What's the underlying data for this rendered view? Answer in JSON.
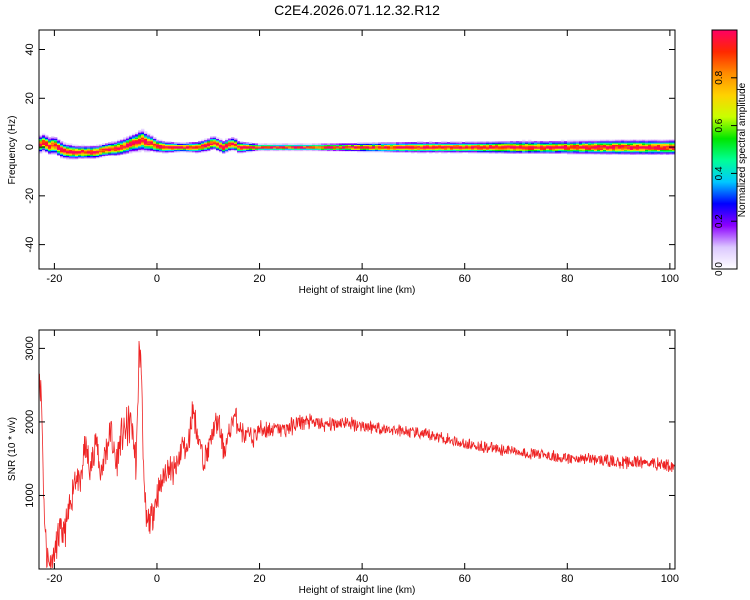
{
  "title": "C2E4.2026.071.12.32.R12",
  "chart_data": [
    {
      "type": "heatmap",
      "xlabel": "Height of straight line (km)",
      "ylabel": "Frequency (Hz)",
      "xlim": [
        -23,
        101
      ],
      "ylim": [
        -50,
        48
      ],
      "xticks": [
        -20,
        0,
        20,
        40,
        60,
        80,
        100
      ],
      "yticks": [
        -40,
        -20,
        0,
        20,
        40
      ],
      "colorbar": {
        "label": "Normalized spectral amplitude",
        "range": [
          0,
          1
        ],
        "ticks": [
          "0.0",
          "0.2",
          "0.4",
          "0.6",
          "0.8"
        ],
        "colors": [
          "#ffffff",
          "#dcc8ff",
          "#8c00ff",
          "#0000ff",
          "#00c8ff",
          "#00ff96",
          "#00e600",
          "#c8ff00",
          "#ffd200",
          "#ff8c00",
          "#ff2800",
          "#ff0064"
        ]
      },
      "ridge": {
        "description_free": true,
        "points": [
          [
            -23,
            1.0
          ],
          [
            -22,
            2.0
          ],
          [
            -21,
            0.5
          ],
          [
            -20,
            1.0
          ],
          [
            -19,
            -0.5
          ],
          [
            -18,
            -1.5
          ],
          [
            -16,
            -2.0
          ],
          [
            -14,
            -2.0
          ],
          [
            -12,
            -2.0
          ],
          [
            -10,
            -1.0
          ],
          [
            -8,
            -0.5
          ],
          [
            -6,
            0.5
          ],
          [
            -5,
            1.5
          ],
          [
            -4,
            2.0
          ],
          [
            -3,
            3.0
          ],
          [
            -2,
            2.0
          ],
          [
            -1,
            1.5
          ],
          [
            0,
            0.5
          ],
          [
            2,
            0.0
          ],
          [
            5,
            0.0
          ],
          [
            8,
            0.0
          ],
          [
            10,
            1.0
          ],
          [
            11,
            2.0
          ],
          [
            12,
            1.0
          ],
          [
            13,
            0.0
          ],
          [
            14,
            1.0
          ],
          [
            15,
            1.5
          ],
          [
            16,
            0.0
          ],
          [
            20,
            0.0
          ],
          [
            30,
            0.0
          ],
          [
            40,
            0.0
          ],
          [
            50,
            0.0
          ],
          [
            60,
            0.0
          ],
          [
            70,
            0.0
          ],
          [
            80,
            0.0
          ],
          [
            90,
            0.0
          ],
          [
            101,
            0.0
          ]
        ],
        "spread": [
          [
            -23,
            4
          ],
          [
            -20,
            4
          ],
          [
            -15,
            3
          ],
          [
            -10,
            3
          ],
          [
            -5,
            4
          ],
          [
            -3,
            5
          ],
          [
            0,
            3
          ],
          [
            5,
            2
          ],
          [
            10,
            3
          ],
          [
            15,
            3
          ],
          [
            20,
            1.5
          ],
          [
            30,
            1.5
          ],
          [
            40,
            2
          ],
          [
            50,
            2.5
          ],
          [
            60,
            2.5
          ],
          [
            70,
            3
          ],
          [
            80,
            3
          ],
          [
            90,
            3.5
          ],
          [
            101,
            3.5
          ]
        ]
      }
    },
    {
      "type": "line",
      "xlabel": "Height of straight line (km)",
      "ylabel": "SNR (10 * v/v)",
      "xlim": [
        -23,
        101
      ],
      "ylim": [
        0,
        3250
      ],
      "xticks": [
        -20,
        0,
        20,
        40,
        60,
        80,
        100
      ],
      "yticks": [
        1000,
        2000,
        3000
      ],
      "color": "#ee2222",
      "series": [
        {
          "values_envelope": [
            [
              -23,
              2700
            ],
            [
              -22.5,
              2300
            ],
            [
              -22,
              800
            ],
            [
              -21.5,
              200
            ],
            [
              -21,
              100
            ],
            [
              -20,
              200
            ],
            [
              -19,
              500
            ],
            [
              -18,
              500
            ],
            [
              -17,
              800
            ],
            [
              -16,
              1300
            ],
            [
              -15,
              1100
            ],
            [
              -14,
              1700
            ],
            [
              -13,
              1300
            ],
            [
              -12,
              1800
            ],
            [
              -11,
              1300
            ],
            [
              -10,
              1600
            ],
            [
              -9,
              1900
            ],
            [
              -8,
              1400
            ],
            [
              -7,
              1800
            ],
            [
              -6,
              1900
            ],
            [
              -5,
              2000
            ],
            [
              -4,
              1400
            ],
            [
              -3.5,
              3000
            ],
            [
              -3,
              2700
            ],
            [
              -2.5,
              1000
            ],
            [
              -2,
              600
            ],
            [
              -1,
              700
            ],
            [
              0,
              1000
            ],
            [
              1,
              1200
            ],
            [
              2,
              1400
            ],
            [
              3,
              1300
            ],
            [
              4,
              1400
            ],
            [
              5,
              1700
            ],
            [
              6,
              1600
            ],
            [
              7,
              2200
            ],
            [
              8,
              1800
            ],
            [
              9,
              1500
            ],
            [
              10,
              1600
            ],
            [
              11,
              1900
            ],
            [
              12,
              2000
            ],
            [
              13,
              1600
            ],
            [
              14,
              1800
            ],
            [
              15,
              2100
            ],
            [
              17,
              1800
            ],
            [
              19,
              1800
            ],
            [
              20,
              1900
            ],
            [
              22,
              1900
            ],
            [
              25,
              1900
            ],
            [
              28,
              2000
            ],
            [
              30,
              2000
            ],
            [
              33,
              1950
            ],
            [
              36,
              2000
            ],
            [
              40,
              1950
            ],
            [
              45,
              1900
            ],
            [
              50,
              1850
            ],
            [
              55,
              1800
            ],
            [
              60,
              1700
            ],
            [
              65,
              1650
            ],
            [
              70,
              1600
            ],
            [
              75,
              1550
            ],
            [
              80,
              1500
            ],
            [
              85,
              1500
            ],
            [
              90,
              1450
            ],
            [
              95,
              1450
            ],
            [
              101,
              1400
            ]
          ],
          "noise": [
            [
              -23,
              300
            ],
            [
              -5,
              400
            ],
            [
              0,
              300
            ],
            [
              15,
              250
            ],
            [
              30,
              150
            ],
            [
              50,
              120
            ],
            [
              70,
              120
            ],
            [
              101,
              130
            ]
          ]
        }
      ]
    }
  ]
}
